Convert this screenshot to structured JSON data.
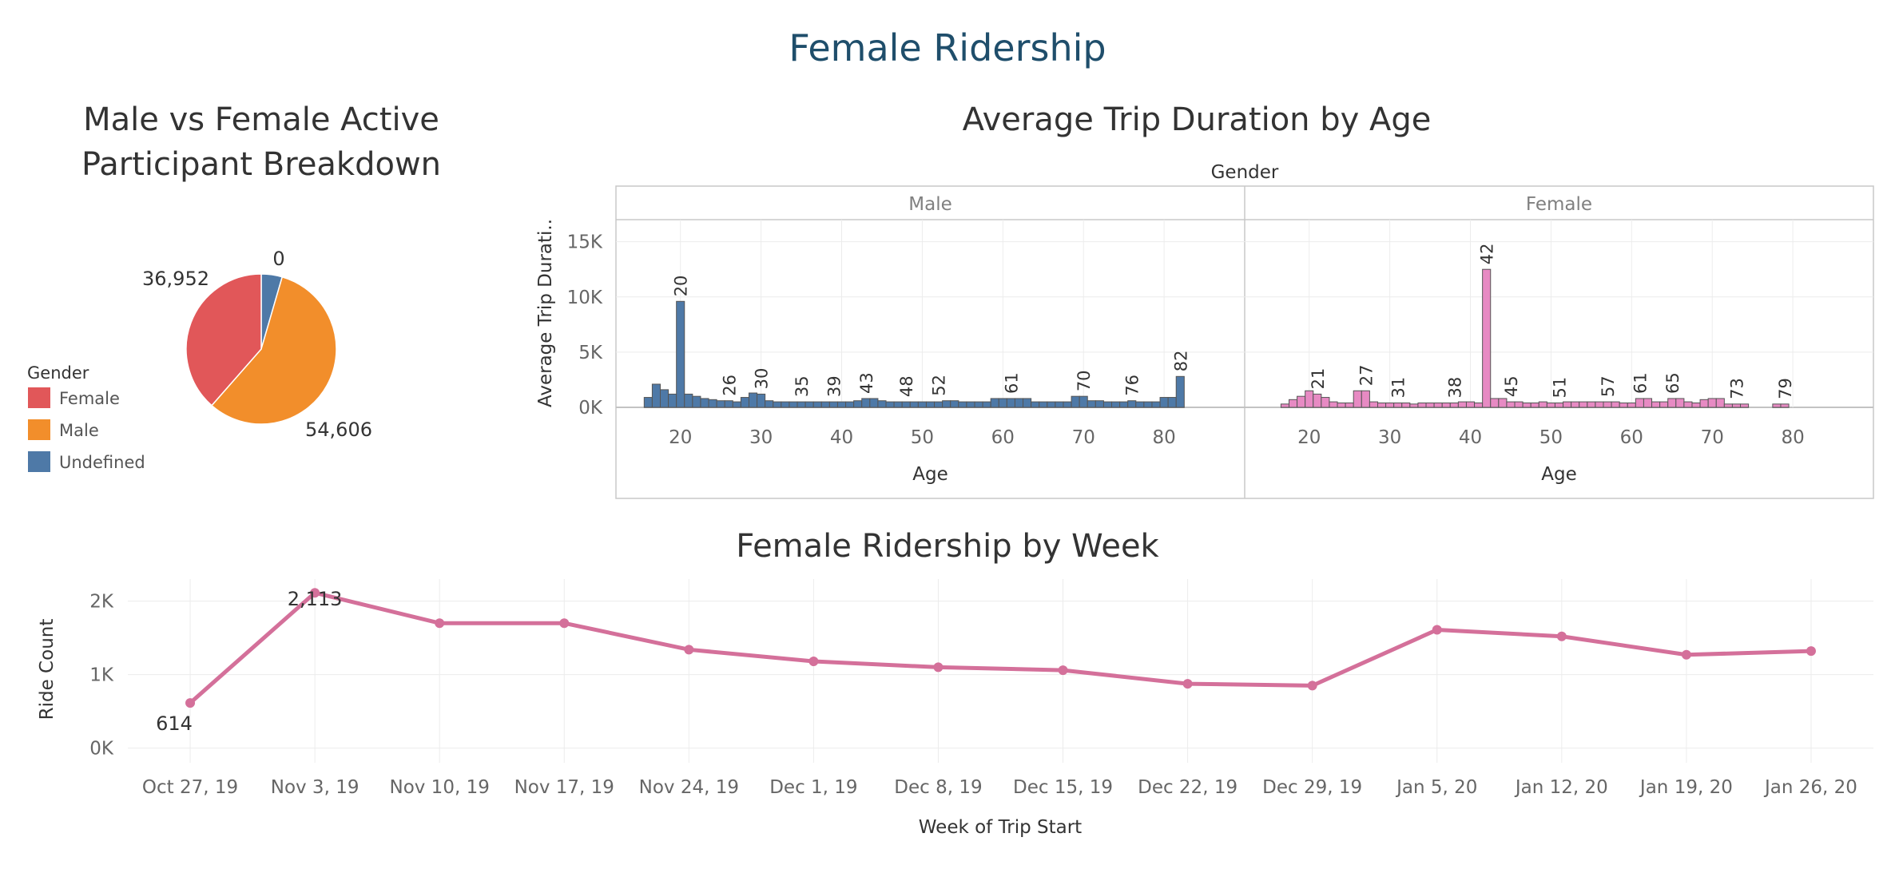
{
  "dashboard": {
    "title": "Female Ridership"
  },
  "chart_data": [
    {
      "type": "pie",
      "title": "Male vs Female Active Participant Breakdown",
      "legend": {
        "title": "Gender",
        "position": "bottom-left"
      },
      "slices": [
        {
          "name": "Female",
          "value": 36952,
          "label": "36,952",
          "color": "#e15759"
        },
        {
          "name": "Male",
          "value": 54606,
          "label": "54,606",
          "color": "#f28e2b"
        },
        {
          "name": "Undefined",
          "value": 0,
          "label": "0",
          "color": "#4e79a7"
        }
      ]
    },
    {
      "type": "bar",
      "title": "Average Trip Duration by Age",
      "facet_label": "Gender",
      "xlabel": "Age",
      "ylabel": "Average Trip Durati..",
      "ylim": [
        0,
        17000
      ],
      "yticks": [
        "0K",
        "5K",
        "10K",
        "15K"
      ],
      "xticks": [
        20,
        30,
        40,
        50,
        60,
        70,
        80
      ],
      "grid": true,
      "panels": [
        {
          "name": "Male",
          "color": "#4e79a7",
          "x": [
            16,
            17,
            18,
            19,
            20,
            21,
            22,
            23,
            24,
            25,
            26,
            27,
            28,
            29,
            30,
            31,
            32,
            33,
            34,
            35,
            36,
            37,
            38,
            39,
            40,
            41,
            42,
            43,
            44,
            45,
            46,
            47,
            48,
            49,
            50,
            51,
            52,
            53,
            54,
            55,
            56,
            57,
            58,
            59,
            60,
            61,
            62,
            63,
            64,
            65,
            66,
            67,
            68,
            69,
            70,
            71,
            72,
            73,
            74,
            75,
            76,
            77,
            78,
            79,
            80,
            81,
            82
          ],
          "values": [
            900,
            2100,
            1600,
            1200,
            9600,
            1200,
            1000,
            800,
            700,
            600,
            600,
            500,
            900,
            1300,
            1200,
            600,
            500,
            500,
            500,
            500,
            500,
            500,
            500,
            500,
            500,
            500,
            600,
            800,
            800,
            600,
            500,
            500,
            500,
            500,
            500,
            500,
            500,
            600,
            600,
            500,
            500,
            500,
            500,
            800,
            800,
            800,
            800,
            800,
            500,
            500,
            500,
            500,
            500,
            1000,
            1000,
            600,
            600,
            500,
            500,
            500,
            600,
            500,
            500,
            500,
            900,
            900,
            2800
          ],
          "labeled": [
            {
              "x": 20,
              "value": 9600,
              "label": "20"
            },
            {
              "x": 26,
              "value": 600,
              "label": "26"
            },
            {
              "x": 30,
              "value": 1200,
              "label": "30"
            },
            {
              "x": 35,
              "value": 500,
              "label": "35"
            },
            {
              "x": 39,
              "value": 500,
              "label": "39"
            },
            {
              "x": 43,
              "value": 800,
              "label": "43"
            },
            {
              "x": 48,
              "value": 500,
              "label": "48"
            },
            {
              "x": 52,
              "value": 600,
              "label": "52"
            },
            {
              "x": 61,
              "value": 800,
              "label": "61"
            },
            {
              "x": 70,
              "value": 1000,
              "label": "70"
            },
            {
              "x": 76,
              "value": 600,
              "label": "76"
            },
            {
              "x": 82,
              "value": 2800,
              "label": "82"
            }
          ]
        },
        {
          "name": "Female",
          "color": "#e78ac3",
          "x": [
            17,
            18,
            19,
            20,
            21,
            22,
            23,
            24,
            25,
            26,
            27,
            28,
            29,
            30,
            31,
            32,
            33,
            34,
            35,
            36,
            37,
            38,
            39,
            40,
            41,
            42,
            43,
            44,
            45,
            46,
            47,
            48,
            49,
            50,
            51,
            52,
            53,
            54,
            55,
            56,
            57,
            58,
            59,
            60,
            61,
            62,
            63,
            64,
            65,
            66,
            67,
            68,
            69,
            70,
            71,
            72,
            73,
            74,
            75,
            76,
            77,
            78,
            79
          ],
          "values": [
            300,
            700,
            1000,
            1500,
            1200,
            900,
            500,
            400,
            400,
            1500,
            1500,
            500,
            400,
            400,
            400,
            400,
            300,
            400,
            400,
            400,
            400,
            400,
            500,
            500,
            400,
            12500,
            800,
            800,
            500,
            500,
            400,
            400,
            500,
            400,
            400,
            500,
            500,
            500,
            500,
            500,
            500,
            500,
            400,
            400,
            800,
            800,
            500,
            500,
            800,
            800,
            500,
            400,
            700,
            800,
            800,
            300,
            300,
            300,
            0,
            0,
            0,
            300,
            300
          ],
          "labeled": [
            {
              "x": 21,
              "value": 1200,
              "label": "21"
            },
            {
              "x": 27,
              "value": 1500,
              "label": "27"
            },
            {
              "x": 31,
              "value": 400,
              "label": "31"
            },
            {
              "x": 38,
              "value": 400,
              "label": "38"
            },
            {
              "x": 42,
              "value": 12500,
              "label": "42"
            },
            {
              "x": 45,
              "value": 500,
              "label": "45"
            },
            {
              "x": 51,
              "value": 400,
              "label": "51"
            },
            {
              "x": 57,
              "value": 500,
              "label": "57"
            },
            {
              "x": 61,
              "value": 800,
              "label": "61"
            },
            {
              "x": 65,
              "value": 800,
              "label": "65"
            },
            {
              "x": 73,
              "value": 300,
              "label": "73"
            },
            {
              "x": 79,
              "value": 300,
              "label": "79"
            }
          ]
        }
      ]
    },
    {
      "type": "line",
      "title": "Female Ridership by Week",
      "xlabel": "Week of Trip Start",
      "ylabel": "Ride Count",
      "ylim": [
        -200,
        2300
      ],
      "yticks": [
        {
          "value": 0,
          "label": "0K"
        },
        {
          "value": 1000,
          "label": "1K"
        },
        {
          "value": 2000,
          "label": "2K"
        }
      ],
      "color": "#d4709a",
      "categories": [
        "Oct 27, 19",
        "Nov 3, 19",
        "Nov 10, 19",
        "Nov 17, 19",
        "Nov 24, 19",
        "Dec 1, 19",
        "Dec 8, 19",
        "Dec 15, 19",
        "Dec 22, 19",
        "Dec 29, 19",
        "Jan 5, 20",
        "Jan 12, 20",
        "Jan 19, 20",
        "Jan 26, 20"
      ],
      "values": [
        614,
        2113,
        1700,
        1700,
        1340,
        1180,
        1100,
        1060,
        875,
        850,
        1610,
        1520,
        1270,
        1320
      ],
      "data_labels": [
        {
          "index": 0,
          "label": "614"
        },
        {
          "index": 1,
          "label": "2,113"
        }
      ]
    }
  ]
}
